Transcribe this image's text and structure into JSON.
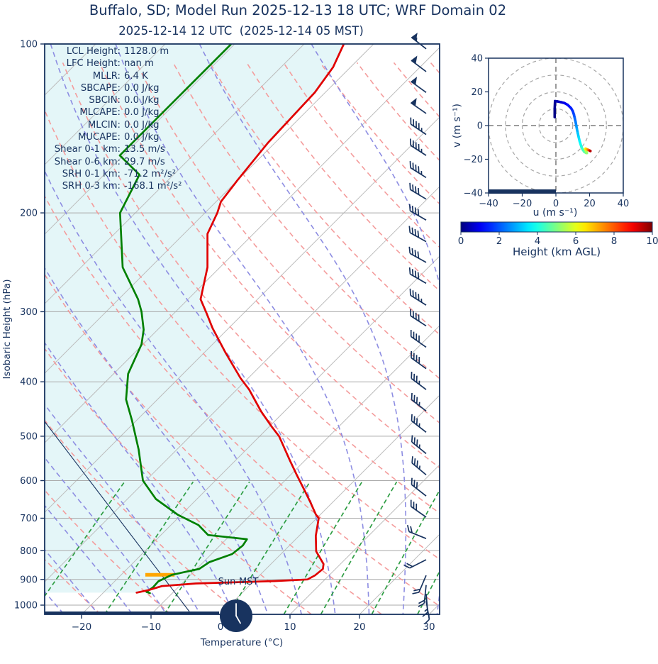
{
  "header": {
    "title": "Buffalo, SD; Model Run 2025-12-13 18 UTC; WRF Domain 02",
    "subtitle": "2025-12-14 12 UTC  (2025-12-14 05 MST)"
  },
  "skewt": {
    "ylabel": "Isobaric Height (hPa)",
    "xlabel": "Temperature (°C)",
    "sun_label": "Sun-MST",
    "pressure_ticks": [
      100,
      200,
      300,
      400,
      500,
      600,
      700,
      800,
      900,
      1000
    ],
    "temp_ticks": [
      -20,
      -10,
      0,
      10,
      20,
      30
    ],
    "indices": [
      {
        "label": "LCL Height:",
        "value": "1128.0 m"
      },
      {
        "label": "LFC Height:",
        "value": "nan m"
      },
      {
        "label": "MLLR:",
        "value": "6.4 K"
      },
      {
        "label": "SBCAPE:",
        "value": "0.0 J/kg"
      },
      {
        "label": "SBCIN:",
        "value": "0.0 J/kg"
      },
      {
        "label": "MLCAPE:",
        "value": "0.0 J/kg"
      },
      {
        "label": "MLCIN:",
        "value": "0.0 J/kg"
      },
      {
        "label": "MUCAPE:",
        "value": "0.0 J/kg"
      },
      {
        "label": "Shear 0-1 km:",
        "value": "13.5 m/s"
      },
      {
        "label": "Shear 0-6 km:",
        "value": "29.7 m/s"
      },
      {
        "label": "SRH 0-1 km:",
        "value": "-71.2 m²/s²"
      },
      {
        "label": "SRH 0-3 km:",
        "value": "-168.1 m²/s²"
      }
    ]
  },
  "hodograph_labels": {
    "xlabel": "u (m s⁻¹)",
    "ylabel": "v (m s⁻¹)"
  },
  "sun_graphic": {
    "clock_time": "05:00",
    "night_bar": true
  },
  "colors": {
    "navy": "#18335f",
    "temperature": "#e00000",
    "dewpoint": "#008000",
    "dry_adiabat": "#f49c9c",
    "moist_adiabat": "#8d8de2",
    "mixing_ratio": "#2f9e44",
    "isotherm": "#bcbcbc",
    "pressure_grid": "#a9a9a9",
    "shade_fill": "#e4f6f8",
    "lcl_marker": "#ffa500",
    "hodo_ring": "#a6a6a6"
  },
  "chart_data": {
    "type": "skewt-log-p",
    "title": "Buffalo, SD; Model Run 2025-12-13 18 UTC; WRF Domain 02",
    "subtitle": "2025-12-14 12 UTC  (2025-12-14 05 MST)",
    "pressure_range_hpa": [
      100,
      1038
    ],
    "surface_temp_axis_range_c": [
      -25.4,
      31.5
    ],
    "grid": true,
    "isotherms_c": {
      "start": -120,
      "end": 40,
      "step": 10
    },
    "dry_adiabats_c": {
      "start": -40,
      "end": 260,
      "step": 10
    },
    "moist_adiabats_c": {
      "start": -40,
      "end": 45,
      "step": 5
    },
    "mixing_ratio_g_kg": [
      0.4,
      1,
      2,
      4,
      7,
      10,
      16,
      24,
      32,
      40
    ],
    "mixing_ratio_top_hpa": 600,
    "temperature_profile_c": [
      [
        100,
        -64.3
      ],
      [
        110,
        -62.5
      ],
      [
        122,
        -61.5
      ],
      [
        150,
        -61.0
      ],
      [
        175,
        -60.0
      ],
      [
        191,
        -59.3
      ],
      [
        200,
        -58.2
      ],
      [
        218,
        -56.6
      ],
      [
        250,
        -51.8
      ],
      [
        285,
        -48.2
      ],
      [
        302,
        -45.3
      ],
      [
        321,
        -42.3
      ],
      [
        355,
        -36.9
      ],
      [
        394,
        -31.1
      ],
      [
        413,
        -28.2
      ],
      [
        452,
        -23.3
      ],
      [
        481,
        -19.6
      ],
      [
        500,
        -17.2
      ],
      [
        518,
        -15.4
      ],
      [
        554,
        -12.0
      ],
      [
        587,
        -9.0
      ],
      [
        626,
        -5.6
      ],
      [
        653,
        -3.4
      ],
      [
        690,
        -0.6
      ],
      [
        700,
        0.3
      ],
      [
        752,
        2.4
      ],
      [
        802,
        4.7
      ],
      [
        845,
        7.6
      ],
      [
        862,
        8.2
      ],
      [
        885,
        8.0
      ],
      [
        900,
        7.5
      ],
      [
        906,
        3.0
      ],
      [
        915,
        -8.0
      ],
      [
        925,
        -12.5
      ],
      [
        940,
        -13.8
      ],
      [
        950,
        -15.2
      ]
    ],
    "dewpoint_profile_c": [
      [
        100,
        -80.5
      ],
      [
        158,
        -80.5
      ],
      [
        171,
        -74.9
      ],
      [
        200,
        -72.2
      ],
      [
        250,
        -64.0
      ],
      [
        285,
        -57.2
      ],
      [
        300,
        -54.9
      ],
      [
        323,
        -52.0
      ],
      [
        343,
        -50.2
      ],
      [
        387,
        -47.9
      ],
      [
        430,
        -44.5
      ],
      [
        469,
        -40.6
      ],
      [
        528,
        -35.5
      ],
      [
        600,
        -30.4
      ],
      [
        647,
        -25.9
      ],
      [
        690,
        -20.5
      ],
      [
        720,
        -16.0
      ],
      [
        750,
        -13.2
      ],
      [
        763,
        -7.0
      ],
      [
        783,
        -6.7
      ],
      [
        811,
        -7.0
      ],
      [
        838,
        -9.1
      ],
      [
        862,
        -9.6
      ],
      [
        883,
        -12.7
      ],
      [
        907,
        -13.7
      ],
      [
        930,
        -13.6
      ],
      [
        947,
        -13.9
      ],
      [
        952,
        -13.2
      ]
    ],
    "lcl_marker": {
      "pressure_hpa": 883,
      "temp_from_c": -16.5,
      "temp_to_c": -12.3
    },
    "wind_barbs_p_dir_kt": [
      [
        102,
        308,
        55
      ],
      [
        112,
        307,
        52
      ],
      [
        122,
        306,
        50
      ],
      [
        133,
        305,
        50
      ],
      [
        145,
        304,
        48
      ],
      [
        158,
        303,
        46
      ],
      [
        173,
        302,
        45
      ],
      [
        189,
        301,
        44
      ],
      [
        206,
        300,
        44
      ],
      [
        225,
        299,
        43
      ],
      [
        245,
        299,
        43
      ],
      [
        267,
        300,
        44
      ],
      [
        292,
        302,
        45
      ],
      [
        318,
        303,
        44
      ],
      [
        347,
        305,
        42
      ],
      [
        379,
        306,
        40
      ],
      [
        413,
        307,
        38
      ],
      [
        451,
        308,
        36
      ],
      [
        492,
        308,
        35
      ],
      [
        537,
        309,
        36
      ],
      [
        586,
        310,
        38
      ],
      [
        639,
        308,
        34
      ],
      [
        697,
        305,
        30
      ],
      [
        761,
        292,
        24
      ],
      [
        830,
        243,
        20
      ],
      [
        885,
        203,
        22
      ],
      [
        921,
        186,
        20
      ],
      [
        955,
        175,
        15
      ],
      [
        984,
        170,
        12
      ]
    ],
    "hodograph": {
      "u_ticks": [
        -40,
        -20,
        0,
        20,
        40
      ],
      "v_ticks": [
        -40,
        -20,
        0,
        20,
        40
      ],
      "rings": [
        10,
        20,
        30,
        40
      ],
      "floor_bar_u": [
        -40,
        0
      ],
      "trace_u_v_heightkm": [
        [
          -0.7,
          5,
          0
        ],
        [
          -0.7,
          10,
          0.1
        ],
        [
          -0.5,
          14.5,
          0.25
        ],
        [
          1,
          14.3,
          0.45
        ],
        [
          3,
          13.9,
          0.65
        ],
        [
          5,
          13.4,
          0.85
        ],
        [
          7,
          12.3,
          1.1
        ],
        [
          9,
          10.3,
          1.35
        ],
        [
          10,
          8.6,
          1.55
        ],
        [
          10.7,
          6.5,
          1.8
        ],
        [
          11.2,
          4.4,
          2.05
        ],
        [
          11.7,
          2.2,
          2.3
        ],
        [
          12.1,
          0,
          2.55
        ],
        [
          12.5,
          -2.2,
          2.8
        ],
        [
          13,
          -4.5,
          3.05
        ],
        [
          13.5,
          -6.8,
          3.3
        ],
        [
          14,
          -9,
          3.55
        ],
        [
          14.6,
          -11,
          3.8
        ],
        [
          15.2,
          -12.8,
          4.05
        ],
        [
          16,
          -14.4,
          4.3
        ],
        [
          16.9,
          -15.6,
          4.55
        ],
        [
          17.9,
          -16.2,
          4.8
        ],
        [
          18.4,
          -16.3,
          5.0
        ],
        [
          18.2,
          -15.6,
          5.2
        ],
        [
          17.7,
          -14.6,
          5.5
        ],
        [
          17.4,
          -13.9,
          5.8
        ],
        [
          17.6,
          -13.7,
          6.1
        ],
        [
          18.1,
          -13.9,
          6.5
        ],
        [
          18.7,
          -14.2,
          7.0
        ],
        [
          19.3,
          -14.5,
          7.5
        ],
        [
          19.9,
          -14.8,
          8.2
        ],
        [
          20.3,
          -15.0,
          9.0
        ],
        [
          20.5,
          -15.1,
          10
        ]
      ]
    },
    "colorbar": {
      "min": 0,
      "max": 10,
      "ticks": [
        0,
        2,
        4,
        6,
        8,
        10
      ],
      "label": "Height (km AGL)",
      "colormap": "jet"
    }
  }
}
